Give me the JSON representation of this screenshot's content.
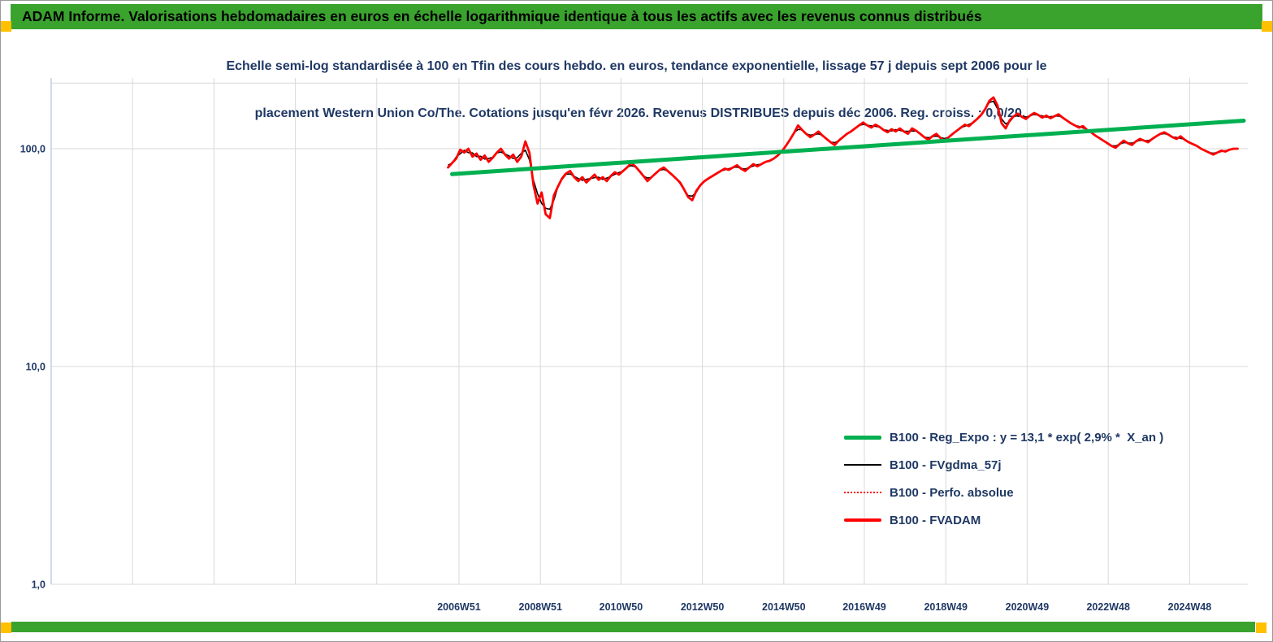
{
  "palette": {
    "header_green": "#3aa32e",
    "corner_gold": "#ffc000",
    "title_navy": "#1f3864",
    "trend_green": "#00b050",
    "series_red": "#ff0000",
    "series_black": "#000000",
    "gridline_gray": "#d9d9d9",
    "axis_blue": "#b8cce4"
  },
  "header": {
    "title": "ADAM Informe. Valorisations hebdomadaires en euros en échelle logarithmique identique à tous les actifs avec les revenus connus distribués"
  },
  "chart_data": {
    "type": "line",
    "scale": "semi-log",
    "title_lines": [
      "Echelle semi-log standardisée à 100 en Tfin des cours hebdo. en euros, tendance exponentielle, lissage 57 j depuis sept 2006 pour le",
      "placement Western Union Co/The. Cotations jusqu'en févr 2026. Revenus DISTRIBUES depuis déc 2006. Reg. croiss. : 0,0/20."
    ],
    "y_axis": {
      "scale": "log",
      "range": [
        1,
        211
      ],
      "ticks": [
        {
          "value": 100,
          "label": "100,0"
        },
        {
          "value": 10,
          "label": "10,0"
        },
        {
          "value": 1,
          "label": "1,0"
        }
      ],
      "grid_values": [
        1,
        10,
        100,
        200
      ]
    },
    "x_axis": {
      "range_years": [
        1996.95,
        2026.35
      ],
      "grid_years_unlabeled": [
        1998.95,
        2000.95,
        2002.95,
        2004.95
      ],
      "ticks": [
        {
          "year": 2006.97,
          "label": "2006W51"
        },
        {
          "year": 2008.97,
          "label": "2008W51"
        },
        {
          "year": 2010.95,
          "label": "2010W50"
        },
        {
          "year": 2012.95,
          "label": "2012W50"
        },
        {
          "year": 2014.95,
          "label": "2014W50"
        },
        {
          "year": 2016.93,
          "label": "2016W49"
        },
        {
          "year": 2018.93,
          "label": "2018W49"
        },
        {
          "year": 2020.93,
          "label": "2020W49"
        },
        {
          "year": 2022.92,
          "label": "2022W48"
        },
        {
          "year": 2024.92,
          "label": "2024W48"
        }
      ]
    },
    "series": [
      {
        "name": "B100 - Reg_Expo : y = 13,1 * exp( 2,9% *  X_an )",
        "render": "trend",
        "color": "#00b050",
        "width": 5,
        "start": [
          2006.8,
          76.5
        ],
        "end": [
          2026.25,
          134.5
        ]
      },
      {
        "name": "B100 - FVgdma_57j",
        "render": "smooth",
        "color": "#000000",
        "width": 1.6,
        "smooth_window": 3
      },
      {
        "name": "B100 - Perfo. absolue",
        "render": "dotted",
        "color": "#ff0000",
        "width": 1.2,
        "dash": "2 3"
      },
      {
        "name": "B100 - FVADAM",
        "render": "main",
        "color": "#ff0000",
        "width": 2.8
      }
    ],
    "x_start": 2006.7,
    "x_step": 0.1,
    "values": [
      82,
      86,
      90,
      99,
      96,
      100,
      92,
      95,
      89,
      93,
      87,
      91,
      96,
      100,
      94,
      90,
      94,
      87,
      92,
      108,
      96,
      68,
      56,
      63,
      50,
      48,
      61,
      67,
      73,
      77,
      79,
      74,
      71,
      74,
      70,
      73,
      76,
      72,
      74,
      71,
      75,
      78,
      76,
      79,
      82,
      86,
      83,
      79,
      75,
      71,
      74,
      77,
      80,
      82,
      79,
      76,
      73,
      70,
      65,
      60,
      58,
      64,
      68,
      71,
      73,
      75,
      77,
      79,
      81,
      80,
      82,
      84,
      81,
      79,
      82,
      85,
      83,
      85,
      87,
      88,
      90,
      93,
      97,
      103,
      110,
      118,
      128,
      122,
      117,
      113,
      116,
      120,
      115,
      111,
      107,
      104,
      109,
      113,
      117,
      120,
      124,
      128,
      132,
      128,
      125,
      129,
      126,
      122,
      119,
      123,
      120,
      124,
      120,
      117,
      124,
      121,
      117,
      113,
      110,
      114,
      117,
      112,
      109,
      113,
      117,
      121,
      125,
      129,
      127,
      132,
      137,
      143,
      152,
      166,
      172,
      158,
      131,
      124,
      135,
      141,
      145,
      140,
      137,
      142,
      146,
      143,
      139,
      142,
      138,
      141,
      144,
      139,
      135,
      131,
      128,
      125,
      127,
      122,
      119,
      115,
      112,
      109,
      106,
      103,
      101,
      105,
      109,
      106,
      104,
      108,
      111,
      109,
      107,
      111,
      114,
      117,
      119,
      116,
      113,
      111,
      114,
      110,
      107,
      105,
      103,
      100,
      98,
      96,
      94,
      96,
      98,
      97,
      99,
      100,
      100
    ]
  }
}
